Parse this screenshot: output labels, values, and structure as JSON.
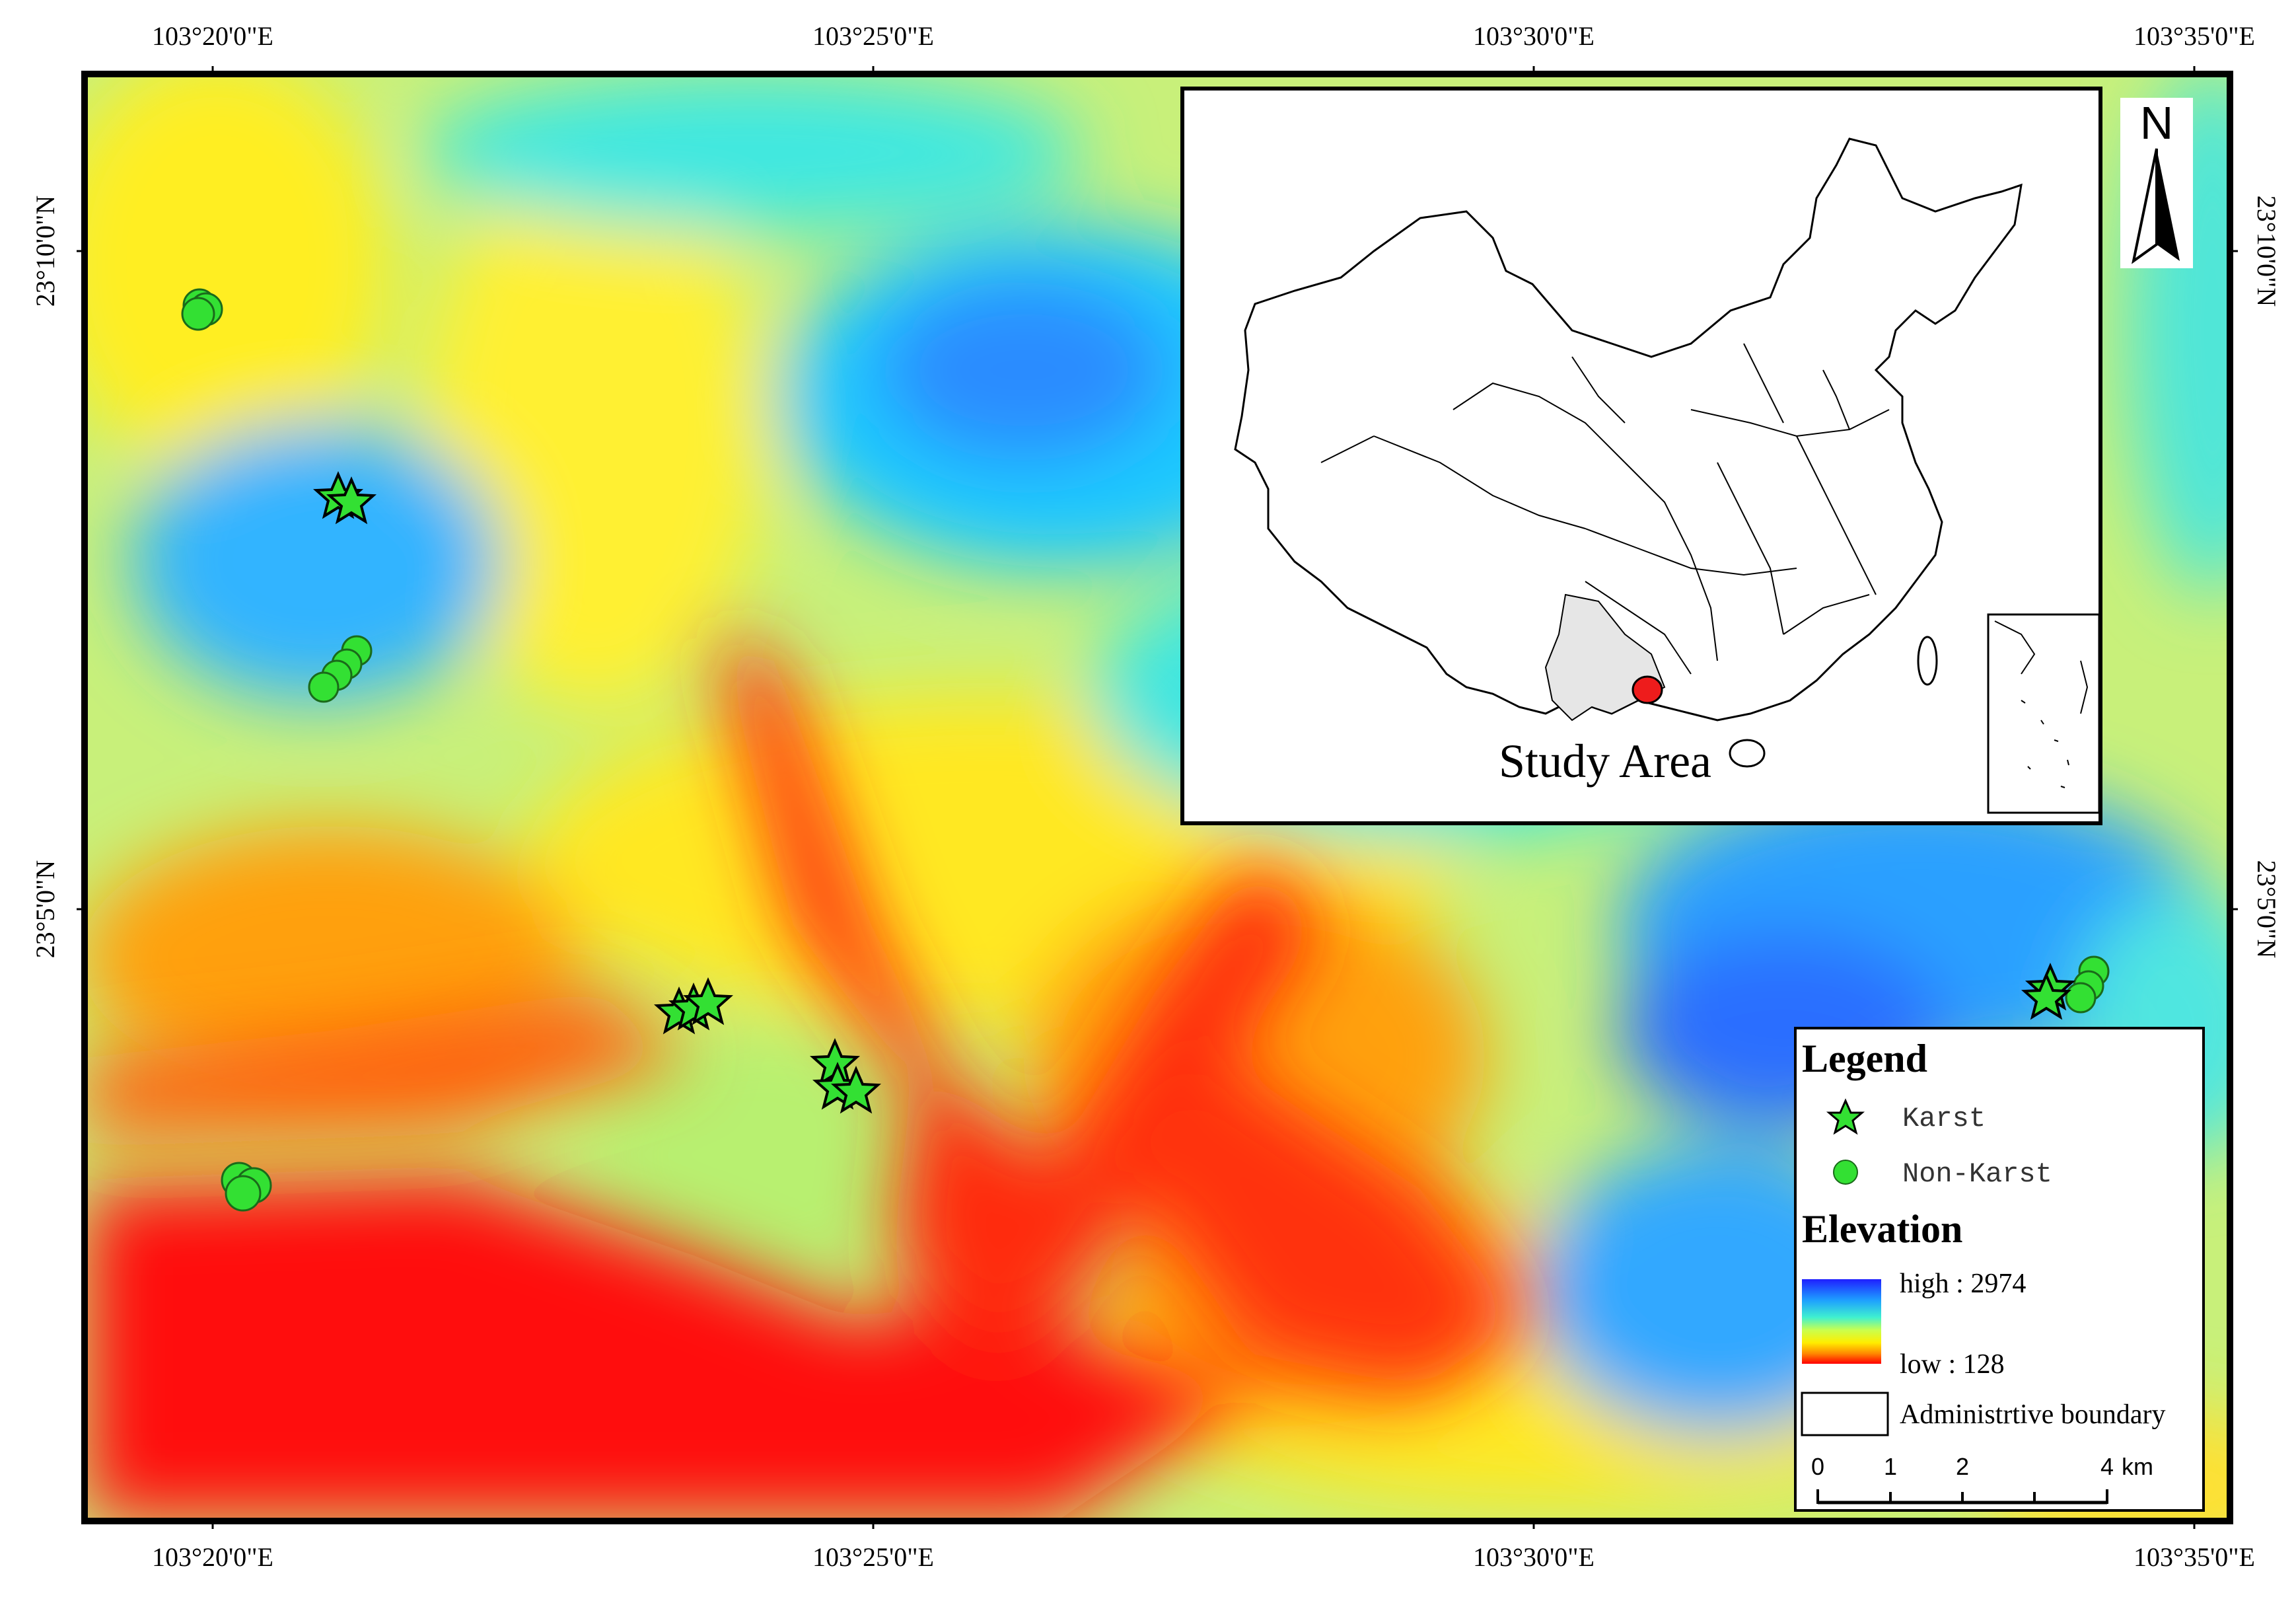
{
  "coordinates": {
    "top_ticks": [
      "103°20'0\"E",
      "103°25'0\"E",
      "103°30'0\"E",
      "103°35'0\"E"
    ],
    "bottom_ticks": [
      "103°20'0\"E",
      "103°25'0\"E",
      "103°30'0\"E",
      "103°35'0\"E"
    ],
    "left_ticks": [
      "23°10'0\"N",
      "23°5'0\"N"
    ],
    "right_ticks": [
      "23°10'0\"N",
      "23°5'0\"N"
    ]
  },
  "inset": {
    "label": "Study Area",
    "study_area_color": "#e6e6e6",
    "marker_color": "#ee1c1c"
  },
  "north_arrow": {
    "label": "N"
  },
  "legend": {
    "title": "Legend",
    "karst_label": "Karst",
    "nonkarst_label": "Non-Karst",
    "elevation_title": "Elevation",
    "high_label": "high : 2974",
    "low_label": "low : 128",
    "boundary_label": "Administrtive boundary",
    "scale_ticks": [
      "0",
      "1",
      "2",
      "4"
    ],
    "scale_unit": "km"
  },
  "colors": {
    "marker_green": "#33e033",
    "elevation_high": "#1f3dff",
    "elevation_low": "#ff0000",
    "frame": "#000000"
  },
  "samples": {
    "karst_count_visible": 5,
    "nonkarst_count_visible": 5
  }
}
